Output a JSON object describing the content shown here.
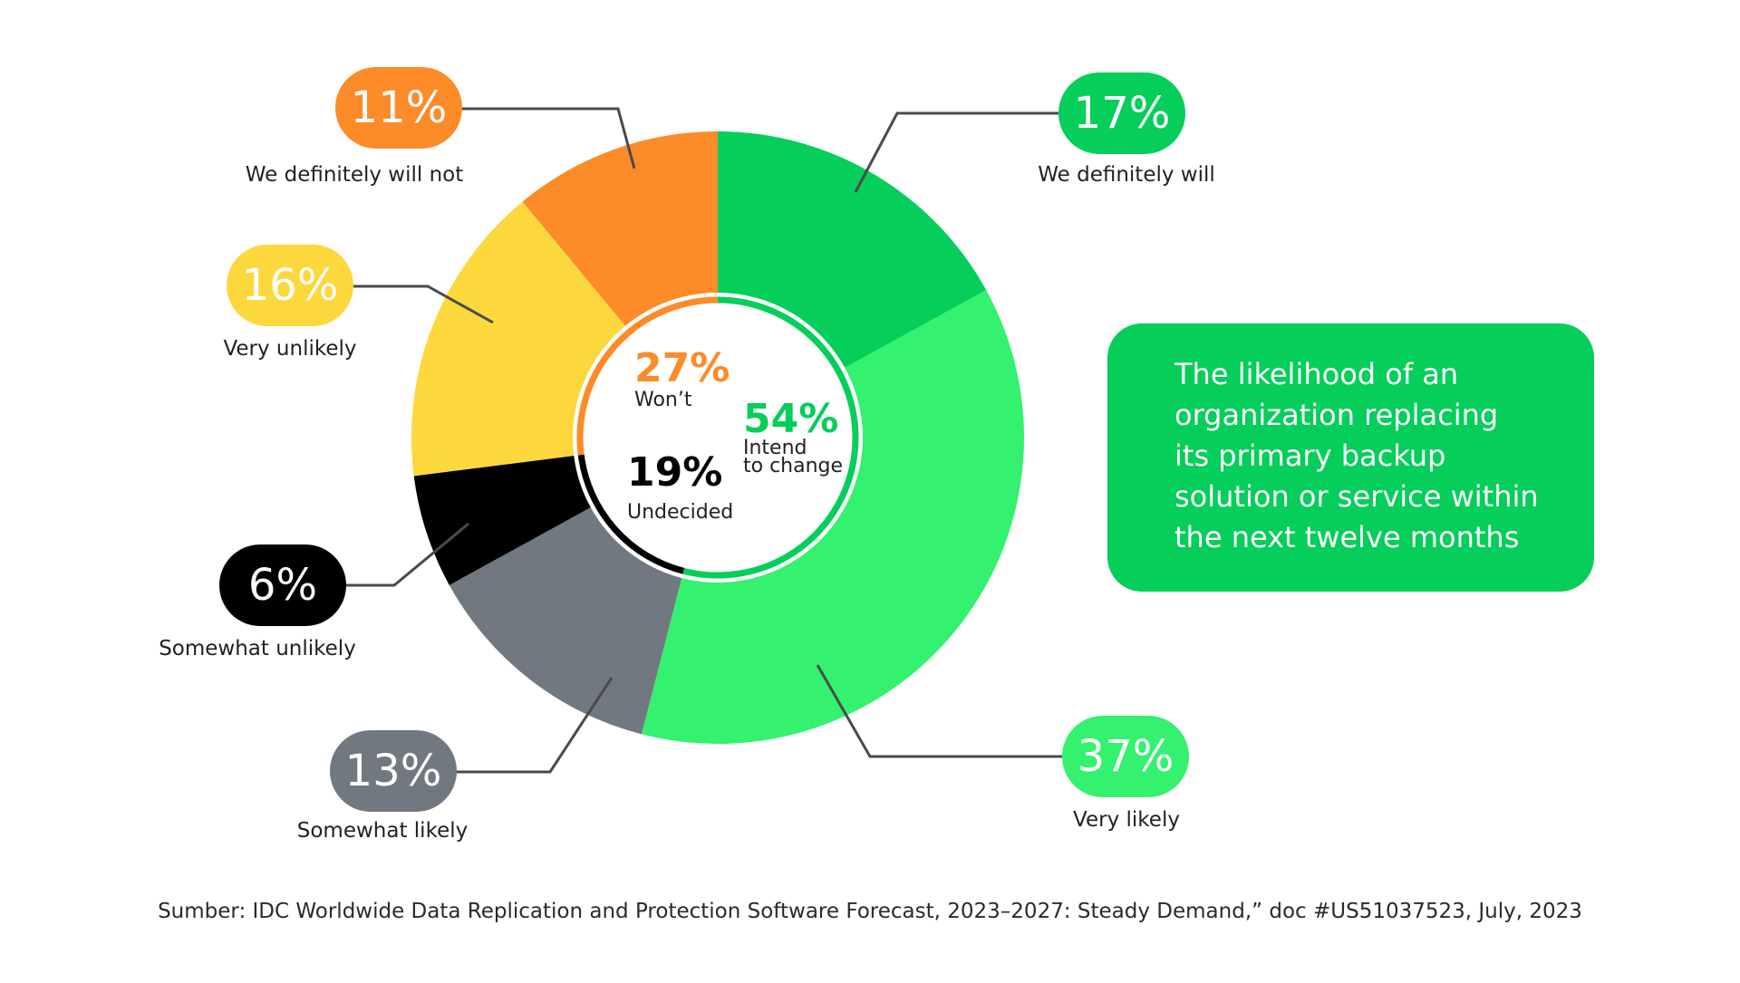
{
  "chart_data": {
    "type": "donut",
    "title": "The likelihood of an organization replacing its primary backup solution or service within the next twelve months",
    "slices": [
      {
        "label": "We definitely will",
        "value": 17,
        "display": "17%",
        "color": "#05ce5a",
        "text_color": "#ffffff"
      },
      {
        "label": "Very likely",
        "value": 37,
        "display": "37%",
        "color": "#34f170",
        "text_color": "#ffffff"
      },
      {
        "label": "Somewhat likely",
        "value": 13,
        "display": "13%",
        "color": "#71787f",
        "text_color": "#ffffff"
      },
      {
        "label": "Somewhat unlikely",
        "value": 6,
        "display": "6%",
        "color": "#000000",
        "text_color": "#ffffff"
      },
      {
        "label": "Very unlikely",
        "value": 16,
        "display": "16%",
        "color": "#fdd83d",
        "text_color": "#ffffff"
      },
      {
        "label": "We definitely will not",
        "value": 11,
        "display": "11%",
        "color": "#fc8b28",
        "text_color": "#ffffff"
      }
    ],
    "groups": [
      {
        "label": "Intend to change",
        "label_lines": [
          "Intend",
          "to change"
        ],
        "value": 54,
        "display": "54%",
        "color": "#05ce5a"
      },
      {
        "label": "Undecided",
        "label_lines": [
          "Undecided"
        ],
        "value": 19,
        "display": "19%",
        "color": "#000000"
      },
      {
        "label": "Won’t",
        "label_lines": [
          "Won’t"
        ],
        "value": 27,
        "display": "27%",
        "color": "#fc8b28"
      }
    ]
  },
  "info_box": {
    "lines": [
      "The likelihood of an",
      "organization replacing",
      "its primary backup",
      "solution or service within",
      "the next twelve months"
    ]
  },
  "source": "Sumber: IDC Worldwide Data Replication and Protection Software Forecast, 2023–2027: Steady Demand,” doc #US51037523, July, 2023"
}
